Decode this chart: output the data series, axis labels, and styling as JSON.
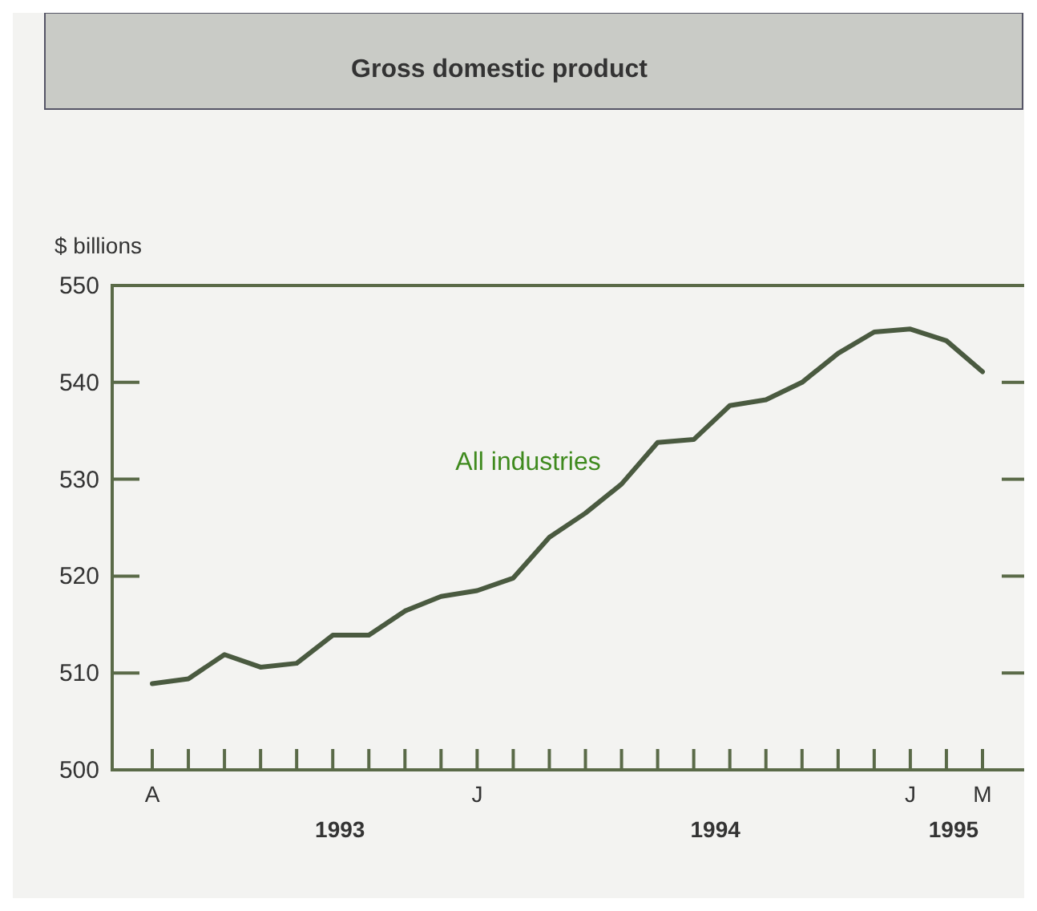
{
  "chart_data": {
    "type": "line",
    "title": "Gross domestic product",
    "ylabel": "$ billions",
    "categories": [
      "A",
      null,
      null,
      null,
      null,
      null,
      null,
      null,
      null,
      "J",
      null,
      null,
      null,
      null,
      null,
      null,
      null,
      null,
      null,
      null,
      null,
      "J",
      null,
      "M"
    ],
    "series": [
      {
        "name": "All industries",
        "color": "#4a5a40",
        "values": [
          508.9,
          509.4,
          511.9,
          510.6,
          511.0,
          513.9,
          513.9,
          516.4,
          517.9,
          518.5,
          519.8,
          524.0,
          526.5,
          529.5,
          533.8,
          534.1,
          537.6,
          538.2,
          540.0,
          543.0,
          545.2,
          545.5,
          544.3,
          541.1
        ]
      }
    ],
    "ylim": [
      500,
      550
    ],
    "yticks": [
      500,
      510,
      520,
      530,
      540,
      550
    ],
    "marker": "none",
    "line_style": "solid",
    "annotations": [
      "1993",
      "1994",
      "1995"
    ]
  }
}
